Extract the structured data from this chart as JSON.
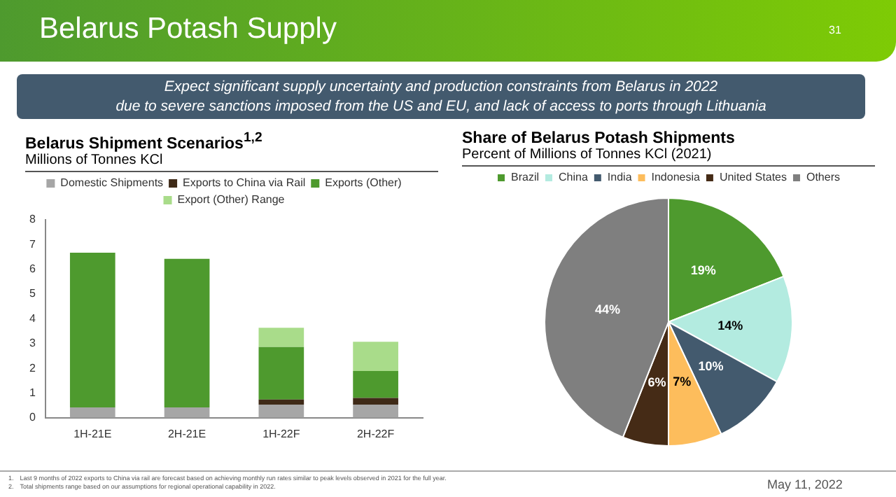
{
  "chart_data": [
    {
      "type": "other",
      "title": "Belarus Potash Supply",
      "annotations": [
        "31",
        "Expect significant supply uncertainty and production constraints from Belarus in 2022\ndue to severe sanctions imposed from the US and EU, and lack of access to ports through Lithuania",
        "1. Last 9 months of 2022 exports to China via rail are forecast based on achieving monthly run rates similar to peak levels observed in 2021 for the full year.",
        "2. Total shipments range based on our assumptions for regional operational capability in 2022.",
        "May 11, 2022"
      ]
    },
    {
      "type": "bar",
      "stacked": true,
      "title": "Belarus Shipment Scenarios$^{1,2}$",
      "subtitle": "Millions of Tonnes KCl",
      "categories": [
        "1H-21E",
        "2H-21E",
        "1H-22F",
        "2H-22F"
      ],
      "ylim": [
        0,
        8
      ],
      "yticks": [
        0,
        1,
        2,
        3,
        4,
        5,
        6,
        7,
        8
      ],
      "grid": false,
      "legend": "top",
      "series": [
        {
          "name": "Domestic Shipments",
          "color": "#a6a6a6",
          "values": [
            0.42,
            0.42,
            0.53,
            0.53
          ]
        },
        {
          "name": "Exports to China via Rail",
          "color": "#3f2a17",
          "values": [
            0,
            0,
            0.21,
            0.27
          ]
        },
        {
          "name": "Exports (Other)",
          "color": "#4e9a2e",
          "values": [
            6.25,
            6.0,
            2.12,
            1.09
          ]
        },
        {
          "name": "Export (Other) Range",
          "color": "#a9dc8a",
          "values": [
            null,
            null,
            0.78,
            1.18
          ]
        }
      ]
    },
    {
      "type": "pie",
      "title": "Share of Belarus Potash Shipments",
      "subtitle": "Percent of Millions of Tonnes KCl (2021)",
      "legend": "top",
      "categories": [
        "Brazil",
        "China",
        "India",
        "Indonesia",
        "United States",
        "Others"
      ],
      "values": [
        19,
        14,
        10,
        7,
        6,
        44
      ],
      "colors": [
        "#4e9a2e",
        "#b3ebe0",
        "#435a6e",
        "#fdbd5c",
        "#452b16",
        "#7f7f7f"
      ],
      "value_labels": [
        "19%",
        "14%",
        "10%",
        "7%",
        "6%",
        "44%"
      ]
    }
  ]
}
